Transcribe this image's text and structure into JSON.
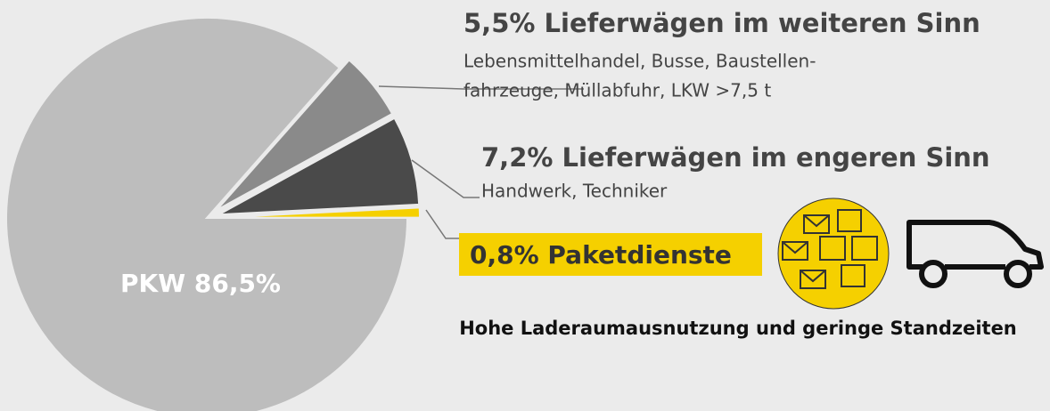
{
  "chart_data": {
    "type": "pie",
    "values": [
      86.5,
      5.5,
      7.2,
      0.8
    ],
    "value_labels": [
      "PKW 86,5%",
      "5,5% Lieferwägen im weiteren Sinn",
      "7,2% Lieferwägen im engeren Sinn",
      "0,8% Paketdienste"
    ],
    "descriptions": [
      null,
      [
        "Lebensmittelhandel, Busse, Baustellen-",
        "fahrzeuge, Müllabfuhr, LKW >7,5 t"
      ],
      [
        "Handwerk, Techniker"
      ],
      null
    ],
    "colors": [
      "#bdbdbd",
      "#8a8a8a",
      "#4a4a4a",
      "#f5d000"
    ],
    "footnote": "Hohe Laderaumausnutzung und geringe Standzeiten"
  }
}
